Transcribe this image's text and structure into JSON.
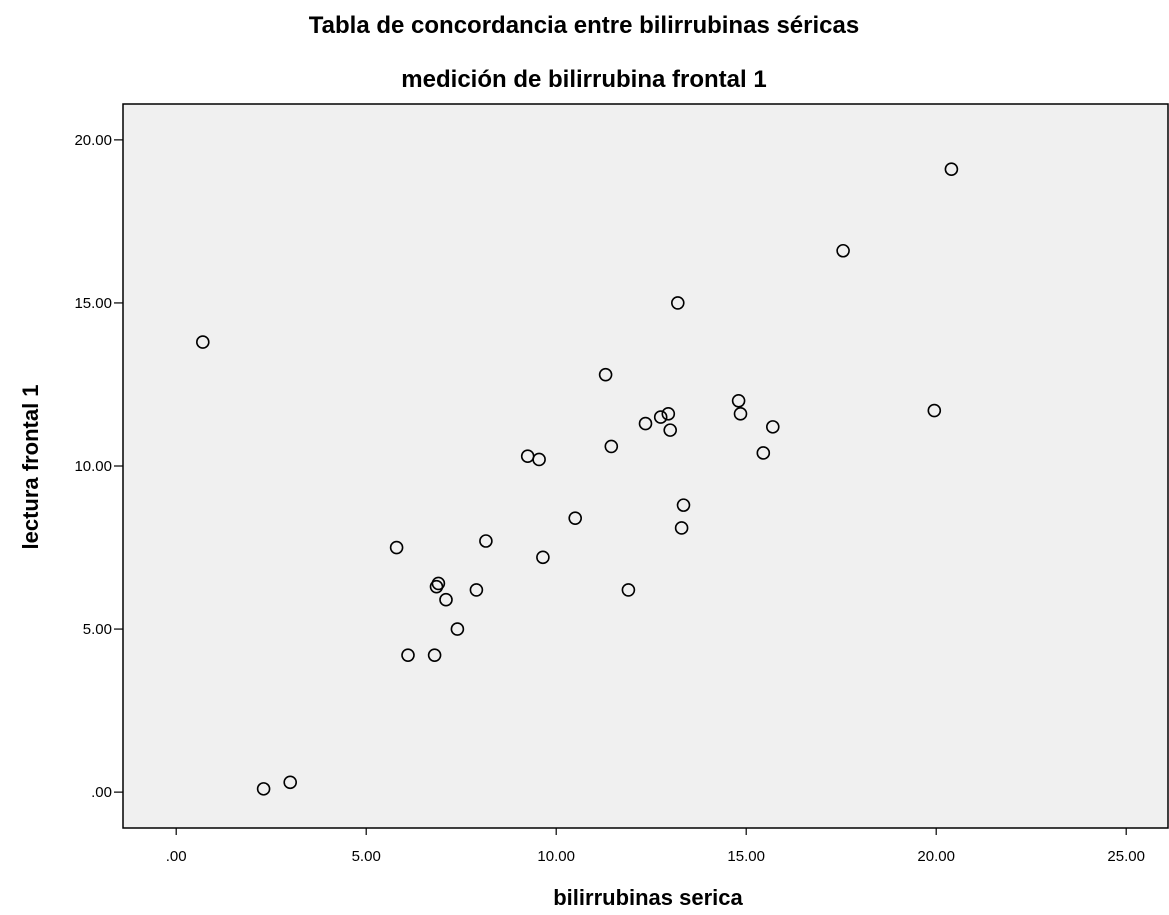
{
  "chart_data": {
    "type": "scatter",
    "title": "Tabla de concordancia entre bilirrubinas séricas",
    "subtitle": "medición de bilirrubina frontal 1",
    "xlabel": "bilirrubinas serica",
    "ylabel": "lectura frontal  1",
    "xlim": [
      -1.4,
      26.1
    ],
    "ylim": [
      -1.1,
      21.1
    ],
    "xticks": [
      {
        "value": 0,
        "label": ".00"
      },
      {
        "value": 5,
        "label": "5.00"
      },
      {
        "value": 10,
        "label": "10.00"
      },
      {
        "value": 15,
        "label": "15.00"
      },
      {
        "value": 20,
        "label": "20.00"
      },
      {
        "value": 25,
        "label": "25.00"
      }
    ],
    "yticks": [
      {
        "value": 0,
        "label": ".00"
      },
      {
        "value": 5,
        "label": "5.00"
      },
      {
        "value": 10,
        "label": "10.00"
      },
      {
        "value": 15,
        "label": "15.00"
      },
      {
        "value": 20,
        "label": "20.00"
      }
    ],
    "grid": false,
    "marker": "hollow-circle",
    "plot_background": "#f0f0f0",
    "marker_color": "#000000",
    "points": [
      {
        "x": 0.7,
        "y": 13.8
      },
      {
        "x": 2.3,
        "y": 0.1
      },
      {
        "x": 3.0,
        "y": 0.3
      },
      {
        "x": 5.8,
        "y": 7.5
      },
      {
        "x": 6.1,
        "y": 4.2
      },
      {
        "x": 6.8,
        "y": 4.2
      },
      {
        "x": 6.85,
        "y": 6.3
      },
      {
        "x": 6.9,
        "y": 6.4
      },
      {
        "x": 7.1,
        "y": 5.9
      },
      {
        "x": 7.4,
        "y": 5.0
      },
      {
        "x": 7.9,
        "y": 6.2
      },
      {
        "x": 8.15,
        "y": 7.7
      },
      {
        "x": 9.25,
        "y": 10.3
      },
      {
        "x": 9.55,
        "y": 10.2
      },
      {
        "x": 9.65,
        "y": 7.2
      },
      {
        "x": 10.5,
        "y": 8.4
      },
      {
        "x": 11.3,
        "y": 12.8
      },
      {
        "x": 11.45,
        "y": 10.6
      },
      {
        "x": 11.9,
        "y": 6.2
      },
      {
        "x": 12.35,
        "y": 11.3
      },
      {
        "x": 12.75,
        "y": 11.5
      },
      {
        "x": 12.95,
        "y": 11.6
      },
      {
        "x": 13.0,
        "y": 11.1
      },
      {
        "x": 13.2,
        "y": 15.0
      },
      {
        "x": 13.3,
        "y": 8.1
      },
      {
        "x": 13.35,
        "y": 8.8
      },
      {
        "x": 14.8,
        "y": 12.0
      },
      {
        "x": 14.85,
        "y": 11.6
      },
      {
        "x": 15.45,
        "y": 10.4
      },
      {
        "x": 15.7,
        "y": 11.2
      },
      {
        "x": 17.55,
        "y": 16.6
      },
      {
        "x": 19.95,
        "y": 11.7
      },
      {
        "x": 20.4,
        "y": 19.1
      }
    ]
  }
}
